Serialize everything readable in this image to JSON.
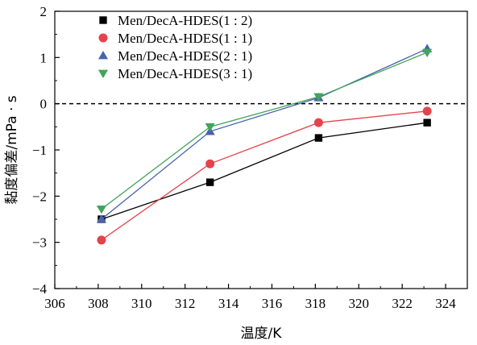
{
  "chart_data": {
    "type": "line",
    "xlabel": "温度/K",
    "ylabel": "黏度偏差/mPa · s",
    "xlim": [
      306,
      325
    ],
    "ylim": [
      -4,
      2
    ],
    "xticks": [
      306,
      308,
      310,
      312,
      314,
      316,
      318,
      320,
      322,
      324
    ],
    "yticks": [
      -4,
      -3,
      -2,
      -1,
      0,
      1,
      2
    ],
    "reference_line": {
      "y": 0,
      "style": "dashed"
    },
    "legend": "top-left",
    "x": [
      308.15,
      313.15,
      318.15,
      323.15
    ],
    "series": [
      {
        "name": "Men/DecA-HDES(1 : 2)",
        "marker": "square",
        "color": "#000000",
        "values": [
          -2.5,
          -1.7,
          -0.74,
          -0.41
        ]
      },
      {
        "name": "Men/DecA-HDES(1 : 1)",
        "marker": "circle",
        "color": "#e5434b",
        "values": [
          -2.95,
          -1.3,
          -0.41,
          -0.16
        ]
      },
      {
        "name": "Men/DecA-HDES(2 : 1)",
        "marker": "triangle-up",
        "color": "#4a62ad",
        "values": [
          -2.5,
          -0.6,
          0.13,
          1.19
        ]
      },
      {
        "name": "Men/DecA-HDES(3 : 1)",
        "marker": "triangle-down",
        "color": "#3fa55a",
        "values": [
          -2.28,
          -0.5,
          0.15,
          1.11
        ]
      }
    ]
  }
}
